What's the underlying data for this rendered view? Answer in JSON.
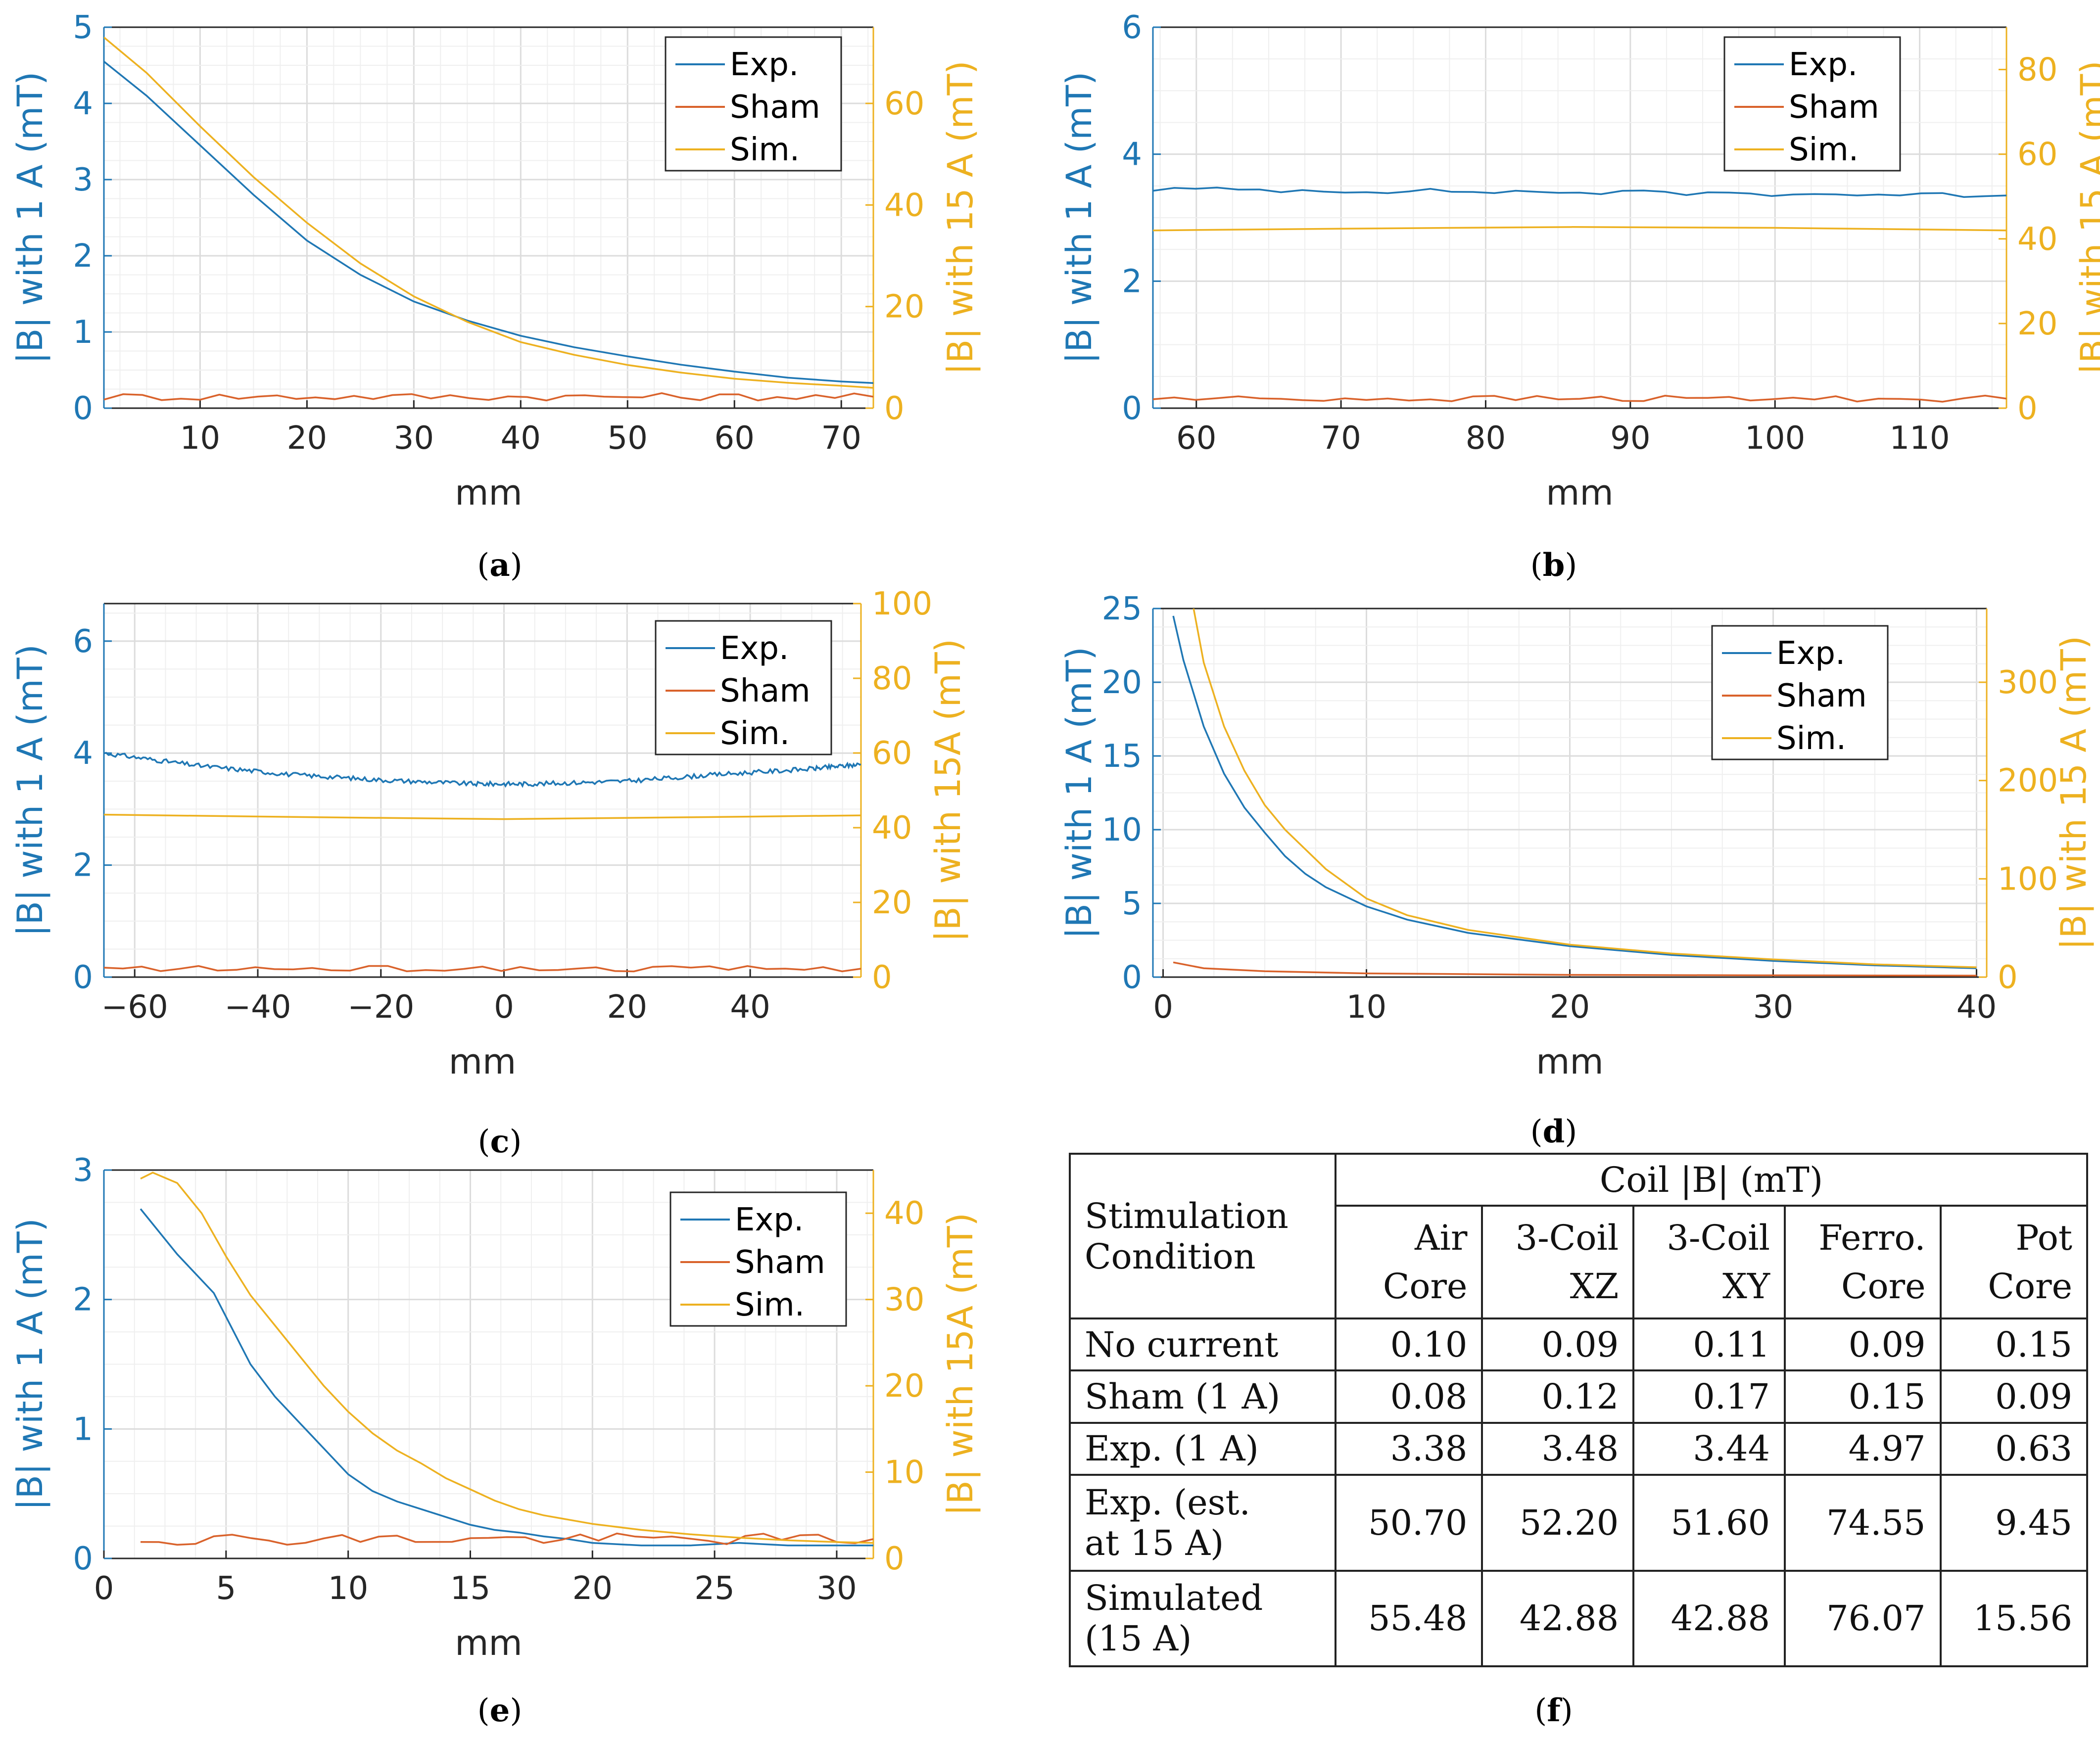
{
  "colors": {
    "exp": "#1f77b4",
    "sham": "#d9622b",
    "sim": "#edb120",
    "grid": "#e6e6e6",
    "axis_left": "#1f77b4",
    "axis_right": "#edb120"
  },
  "chart_data": [
    {
      "type": "line",
      "caption": "a",
      "xlabel": "mm",
      "ylabel_left": "|B| with 1 A (mT)",
      "ylabel_right": "|B| with 15 A (mT)",
      "xlim": [
        1,
        73
      ],
      "ylim_left": [
        0,
        5
      ],
      "ylim_right": [
        0,
        75
      ],
      "xticks": [
        10,
        20,
        30,
        40,
        50,
        60,
        70
      ],
      "xtick_labels": [
        "10",
        "20",
        "30",
        "40",
        "50",
        "60",
        "70"
      ],
      "yticks_left": [
        0,
        1,
        2,
        3,
        4,
        5
      ],
      "ytick_labels_left": [
        "0",
        "1",
        "2",
        "3",
        "4",
        "5"
      ],
      "yticks_right": [
        0,
        20,
        40,
        60
      ],
      "ytick_labels_right": [
        "0",
        "20",
        "40",
        "60"
      ],
      "legend": [
        "Exp.",
        "Sham",
        "Sim."
      ],
      "legend_position": "top-right",
      "grid": true,
      "series": [
        {
          "name": "Exp.",
          "axis": "left",
          "x": [
            1,
            5,
            10,
            15,
            20,
            25,
            30,
            35,
            40,
            45,
            50,
            55,
            60,
            65,
            70,
            73
          ],
          "y": [
            4.55,
            4.1,
            3.45,
            2.8,
            2.2,
            1.75,
            1.4,
            1.15,
            0.95,
            0.8,
            0.68,
            0.57,
            0.48,
            0.4,
            0.35,
            0.33
          ]
        },
        {
          "name": "Sham",
          "axis": "left",
          "x": [
            1,
            73
          ],
          "y": [
            0.15,
            0.15
          ],
          "noise": 0.05
        },
        {
          "name": "Sim.",
          "axis": "right",
          "x": [
            1,
            5,
            10,
            15,
            20,
            25,
            30,
            35,
            40,
            45,
            50,
            55,
            60,
            65,
            70,
            73
          ],
          "y": [
            73,
            66,
            55.5,
            45.5,
            36.5,
            28.5,
            22,
            17,
            13,
            10.5,
            8.5,
            7,
            5.8,
            5,
            4.4,
            4
          ]
        }
      ]
    },
    {
      "type": "line",
      "caption": "b",
      "xlabel": "mm",
      "ylabel_left": "|B| with 1 A (mT)",
      "ylabel_right": "|B| with 15 A (mT)",
      "xlim": [
        57,
        116
      ],
      "ylim_left": [
        0,
        6
      ],
      "ylim_right": [
        0,
        90
      ],
      "xticks": [
        60,
        70,
        80,
        90,
        100,
        110
      ],
      "xtick_labels": [
        "60",
        "70",
        "80",
        "90",
        "100",
        "110"
      ],
      "yticks_left": [
        0,
        2,
        4,
        6
      ],
      "ytick_labels_left": [
        "0",
        "2",
        "4",
        "6"
      ],
      "yticks_right": [
        0,
        20,
        40,
        60,
        80
      ],
      "ytick_labels_right": [
        "0",
        "20",
        "40",
        "60",
        "80"
      ],
      "legend": [
        "Exp.",
        "Sham",
        "Sim."
      ],
      "legend_position": "top-right",
      "grid": true,
      "series": [
        {
          "name": "Exp.",
          "axis": "left",
          "x": [
            57,
            116
          ],
          "y": [
            3.45,
            3.35
          ],
          "noise": 0.04
        },
        {
          "name": "Sham",
          "axis": "left",
          "x": [
            57,
            116
          ],
          "y": [
            0.15,
            0.15
          ],
          "noise": 0.05
        },
        {
          "name": "Sim.",
          "axis": "right",
          "x": [
            57,
            70,
            86,
            100,
            116
          ],
          "y": [
            42,
            42.4,
            42.8,
            42.6,
            42
          ]
        }
      ]
    },
    {
      "type": "line",
      "caption": "c",
      "xlabel": "mm",
      "ylabel_left": "|B| with 1 A (mT)",
      "ylabel_right": "|B| with 15A (mT)",
      "xlim": [
        -65,
        58
      ],
      "ylim_left": [
        0,
        6.67
      ],
      "ylim_right": [
        0,
        100
      ],
      "xticks": [
        -60,
        -40,
        -20,
        0,
        20,
        40
      ],
      "xtick_labels": [
        "−60",
        "−40",
        "−20",
        "0",
        "20",
        "40"
      ],
      "yticks_left": [
        0,
        2,
        4,
        6
      ],
      "ytick_labels_left": [
        "0",
        "2",
        "4",
        "6"
      ],
      "yticks_right": [
        0,
        20,
        40,
        60,
        80,
        100
      ],
      "ytick_labels_right": [
        "0",
        "20",
        "40",
        "60",
        "80",
        "100"
      ],
      "legend": [
        "Exp.",
        "Sham",
        "Sim."
      ],
      "legend_position": "top-right",
      "grid": true,
      "series": [
        {
          "name": "Exp.",
          "axis": "left",
          "x": [
            -65,
            -50,
            -35,
            -20,
            -5,
            5,
            20,
            35,
            50,
            58
          ],
          "y": [
            4.0,
            3.78,
            3.62,
            3.52,
            3.45,
            3.45,
            3.5,
            3.62,
            3.72,
            3.8
          ],
          "noise": 0.04
        },
        {
          "name": "Sham",
          "axis": "left",
          "x": [
            -65,
            58
          ],
          "y": [
            0.15,
            0.15
          ],
          "noise": 0.05
        },
        {
          "name": "Sim.",
          "axis": "right",
          "x": [
            -65,
            -30,
            0,
            30,
            58
          ],
          "y": [
            43.5,
            42.8,
            42.3,
            42.8,
            43.3
          ]
        }
      ]
    },
    {
      "type": "line",
      "caption": "d",
      "xlabel": "mm",
      "ylabel_left": "|B| with 1 A (mT)",
      "ylabel_right": "|B| with 15 A (mT)",
      "xlim": [
        -0.5,
        40.5
      ],
      "ylim_left": [
        0,
        25
      ],
      "ylim_right": [
        0,
        375
      ],
      "xticks": [
        0,
        10,
        20,
        30,
        40
      ],
      "xtick_labels": [
        "0",
        "10",
        "20",
        "30",
        "40"
      ],
      "yticks_left": [
        0,
        5,
        10,
        15,
        20,
        25
      ],
      "ytick_labels_left": [
        "0",
        "5",
        "10",
        "15",
        "20",
        "25"
      ],
      "yticks_right": [
        0,
        100,
        200,
        300
      ],
      "ytick_labels_right": [
        "0",
        "100",
        "200",
        "300"
      ],
      "legend": [
        "Exp.",
        "Sham",
        "Sim."
      ],
      "legend_position": "top-right",
      "grid": true,
      "series": [
        {
          "name": "Exp.",
          "axis": "left",
          "x": [
            0.5,
            1,
            2,
            3,
            4,
            5,
            6,
            7,
            8,
            10,
            12,
            15,
            20,
            25,
            30,
            35,
            40
          ],
          "y": [
            24.5,
            21.5,
            17,
            13.8,
            11.5,
            9.8,
            8.2,
            7.0,
            6.1,
            4.8,
            3.9,
            3.0,
            2.1,
            1.5,
            1.1,
            0.8,
            0.6
          ]
        },
        {
          "name": "Sham",
          "axis": "left",
          "x": [
            0.5,
            2,
            5,
            10,
            20,
            30,
            40
          ],
          "y": [
            1.0,
            0.6,
            0.4,
            0.25,
            0.15,
            0.12,
            0.1
          ]
        },
        {
          "name": "Sim.",
          "axis": "right",
          "x": [
            1.5,
            2,
            3,
            4,
            5,
            6,
            7,
            8,
            10,
            12,
            15,
            20,
            25,
            30,
            35,
            40
          ],
          "y": [
            375,
            320,
            255,
            210,
            175,
            150,
            130,
            110,
            80,
            63,
            48,
            33,
            24,
            18,
            13,
            10
          ]
        }
      ]
    },
    {
      "type": "line",
      "caption": "e",
      "xlabel": "mm",
      "ylabel_left": "|B| with 1 A (mT)",
      "ylabel_right": "|B| with 15A (mT)",
      "xlim": [
        0,
        31.5
      ],
      "ylim_left": [
        0,
        3
      ],
      "ylim_right": [
        0,
        45
      ],
      "xticks": [
        0,
        5,
        10,
        15,
        20,
        25,
        30
      ],
      "xtick_labels": [
        "0",
        "5",
        "10",
        "15",
        "20",
        "25",
        "30"
      ],
      "yticks_left": [
        0,
        1,
        2,
        3
      ],
      "ytick_labels_left": [
        "0",
        "1",
        "2",
        "3"
      ],
      "yticks_right": [
        0,
        10,
        20,
        30,
        40
      ],
      "ytick_labels_right": [
        "0",
        "10",
        "20",
        "30",
        "40"
      ],
      "legend": [
        "Exp.",
        "Sham",
        "Sim."
      ],
      "legend_position": "top-right",
      "grid": true,
      "series": [
        {
          "name": "Exp.",
          "axis": "left",
          "x": [
            1.5,
            3,
            4.5,
            6,
            7,
            8,
            9,
            10,
            11,
            12,
            13,
            14,
            15,
            16,
            17,
            18,
            19,
            20,
            22,
            24,
            26,
            28,
            30,
            31.5
          ],
          "y": [
            2.7,
            2.35,
            2.05,
            1.5,
            1.25,
            1.05,
            0.85,
            0.65,
            0.52,
            0.44,
            0.38,
            0.32,
            0.26,
            0.22,
            0.2,
            0.17,
            0.15,
            0.12,
            0.1,
            0.1,
            0.12,
            0.1,
            0.1,
            0.1
          ]
        },
        {
          "name": "Sham",
          "axis": "left",
          "x": [
            1.5,
            31.5
          ],
          "y": [
            0.15,
            0.15
          ],
          "noise": 0.045
        },
        {
          "name": "Sim.",
          "axis": "right",
          "x": [
            1.5,
            2,
            3,
            4,
            5,
            6,
            7,
            8,
            9,
            10,
            11,
            12,
            13,
            14,
            15,
            16,
            17,
            18,
            20,
            22,
            24,
            26,
            28,
            30,
            31.5
          ],
          "y": [
            44,
            44.7,
            43.5,
            40,
            35,
            30.5,
            27,
            23.5,
            20,
            17,
            14.5,
            12.5,
            11,
            9.3,
            8,
            6.7,
            5.7,
            5,
            4,
            3.3,
            2.8,
            2.4,
            2.1,
            1.9,
            1.8
          ]
        }
      ]
    }
  ],
  "table": {
    "caption": "f",
    "group_header": "Coil |B| (mT)",
    "row_header": [
      "Stimulation",
      "Condition"
    ],
    "columns": [
      [
        "Air",
        "Core"
      ],
      [
        "3-Coil",
        "XZ"
      ],
      [
        "3-Coil",
        "XY"
      ],
      [
        "Ferro.",
        "Core"
      ],
      [
        "Pot",
        "Core"
      ]
    ],
    "rows": [
      {
        "label": [
          "No current"
        ],
        "values": [
          "0.10",
          "0.09",
          "0.11",
          "0.09",
          "0.15"
        ]
      },
      {
        "label": [
          "Sham (1 A)"
        ],
        "values": [
          "0.08",
          "0.12",
          "0.17",
          "0.15",
          "0.09"
        ]
      },
      {
        "label": [
          "Exp. (1 A)"
        ],
        "values": [
          "3.38",
          "3.48",
          "3.44",
          "4.97",
          "0.63"
        ]
      },
      {
        "label": [
          "Exp. (est.",
          "at 15 A)"
        ],
        "values": [
          "50.70",
          "52.20",
          "51.60",
          "74.55",
          "9.45"
        ]
      },
      {
        "label": [
          "Simulated",
          "(15 A)"
        ],
        "values": [
          "55.48",
          "42.88",
          "42.88",
          "76.07",
          "15.56"
        ]
      }
    ]
  }
}
